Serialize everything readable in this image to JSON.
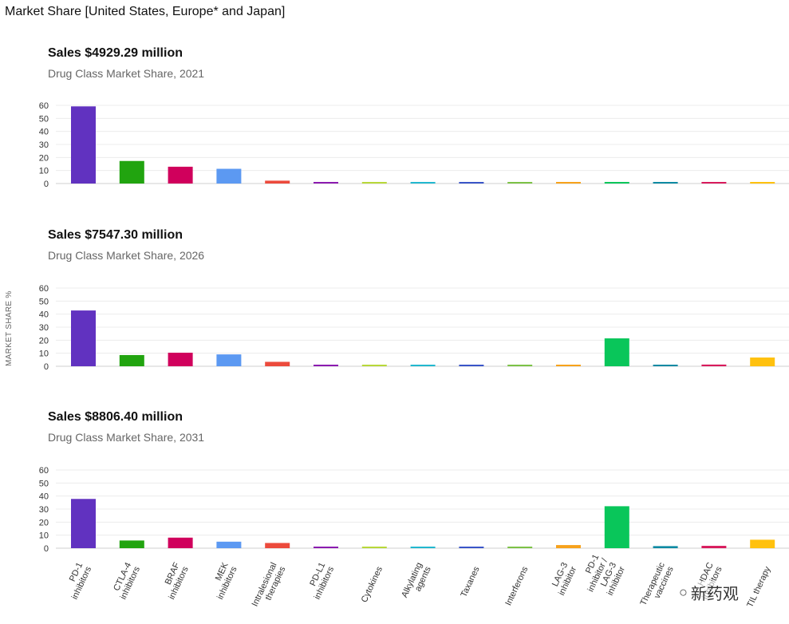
{
  "page_title": "Market Share [United States, Europe* and Japan]",
  "y_axis_label": "MARKET SHARE %",
  "watermark": {
    "icon": "wechat-icon",
    "text": "新药观"
  },
  "chart_data": [
    {
      "type": "bar",
      "title": "Sales $4929.29 million",
      "subtitle": "Drug Class Market Share, 2021",
      "ylabel": "MARKET SHARE %",
      "ylim": [
        0,
        60
      ],
      "yticks": [
        0,
        10,
        20,
        30,
        40,
        50,
        60
      ],
      "grid": true,
      "categories": [
        "PD-1 inhibitors",
        "CTLA-4 inhibitors",
        "BRAF inhibitors",
        "MEK inhibitors",
        "Intralesional therapies",
        "PD-L1 inhibitors",
        "Cytokines",
        "Alkylating agents",
        "Taxanes",
        "Interferons",
        "LAG-3 inhibitor",
        "PD-1 inhibitor / LAG-3 inhibitor",
        "Therapeutic vaccines",
        "HDAC inhibitors",
        "TIL therapy"
      ],
      "values": [
        59.2,
        17.3,
        12.9,
        11.3,
        2.2,
        0.6,
        0.3,
        0.4,
        0.5,
        0.4,
        0.8,
        0.8,
        0.9,
        1.0,
        0.6
      ],
      "colors": [
        "#6132c0",
        "#21a40f",
        "#d0005c",
        "#5c99f2",
        "#ec4a3c",
        "#8b1bb0",
        "#b8d83a",
        "#22b8cf",
        "#3a55c8",
        "#7cc246",
        "#f7a21b",
        "#09c65a",
        "#0e8aa3",
        "#d81b5c",
        "#ffc10e"
      ]
    },
    {
      "type": "bar",
      "title": "Sales $7547.30 million",
      "subtitle": "Drug Class Market Share, 2026",
      "ylabel": "MARKET SHARE %",
      "ylim": [
        0,
        60
      ],
      "yticks": [
        0,
        10,
        20,
        30,
        40,
        50,
        60
      ],
      "grid": true,
      "categories": [
        "PD-1 inhibitors",
        "CTLA-4 inhibitors",
        "BRAF inhibitors",
        "MEK inhibitors",
        "Intralesional therapies",
        "PD-L1 inhibitors",
        "Cytokines",
        "Alkylating agents",
        "Taxanes",
        "Interferons",
        "LAG-3 inhibitor",
        "PD-1 inhibitor / LAG-3 inhibitor",
        "Therapeutic vaccines",
        "HDAC inhibitors",
        "TIL therapy"
      ],
      "values": [
        42.8,
        8.6,
        10.4,
        9.1,
        3.4,
        0.5,
        0.3,
        0.2,
        0.5,
        0.8,
        1.2,
        21.4,
        1.0,
        1.3,
        6.7
      ],
      "colors": [
        "#6132c0",
        "#21a40f",
        "#d0005c",
        "#5c99f2",
        "#ec4a3c",
        "#8b1bb0",
        "#b8d83a",
        "#22b8cf",
        "#3a55c8",
        "#7cc246",
        "#f7a21b",
        "#09c65a",
        "#0e8aa3",
        "#d81b5c",
        "#ffc10e"
      ]
    },
    {
      "type": "bar",
      "title": "Sales $8806.40 million",
      "subtitle": "Drug Class Market Share, 2031",
      "ylabel": "MARKET SHARE %",
      "ylim": [
        0,
        60
      ],
      "yticks": [
        0,
        10,
        20,
        30,
        40,
        50,
        60
      ],
      "grid": true,
      "categories": [
        "PD-1 inhibitors",
        "CTLA-4 inhibitors",
        "BRAF inhibitors",
        "MEK inhibitors",
        "Intralesional therapies",
        "PD-L1 inhibitors",
        "Cytokines",
        "Alkylating agents",
        "Taxanes",
        "Interferons",
        "LAG-3 inhibitor",
        "PD-1 inhibitor / LAG-3 inhibitor",
        "Therapeutic vaccines",
        "HDAC inhibitors",
        "TIL therapy"
      ],
      "category_label_lines": [
        [
          "PD-1",
          "inhibitors"
        ],
        [
          "CTLA-4",
          "inhibitors"
        ],
        [
          "BRAF",
          "inhibitors"
        ],
        [
          "MEK",
          "inhibitors"
        ],
        [
          "Intralesional",
          "therapies"
        ],
        [
          "PD-L1",
          "inhibitors"
        ],
        [
          "Cytokines"
        ],
        [
          "Alkylating",
          "agents"
        ],
        [
          "Taxanes"
        ],
        [
          "Interferons"
        ],
        [
          "LAG-3",
          "inhibitor"
        ],
        [
          "PD-1",
          "inhibitor /",
          "LAG-3",
          "inhibitor"
        ],
        [
          "Therapeutic",
          "vaccines"
        ],
        [
          "HDAC",
          "inhibitors"
        ],
        [
          "TIL therapy"
        ]
      ],
      "values": [
        37.8,
        5.9,
        8.1,
        5.0,
        4.0,
        0.5,
        0.3,
        0.2,
        0.5,
        0.7,
        2.4,
        32.2,
        1.6,
        1.8,
        6.5
      ],
      "colors": [
        "#6132c0",
        "#21a40f",
        "#d0005c",
        "#5c99f2",
        "#ec4a3c",
        "#8b1bb0",
        "#b8d83a",
        "#22b8cf",
        "#3a55c8",
        "#7cc246",
        "#f7a21b",
        "#09c65a",
        "#0e8aa3",
        "#d81b5c",
        "#ffc10e"
      ]
    }
  ]
}
